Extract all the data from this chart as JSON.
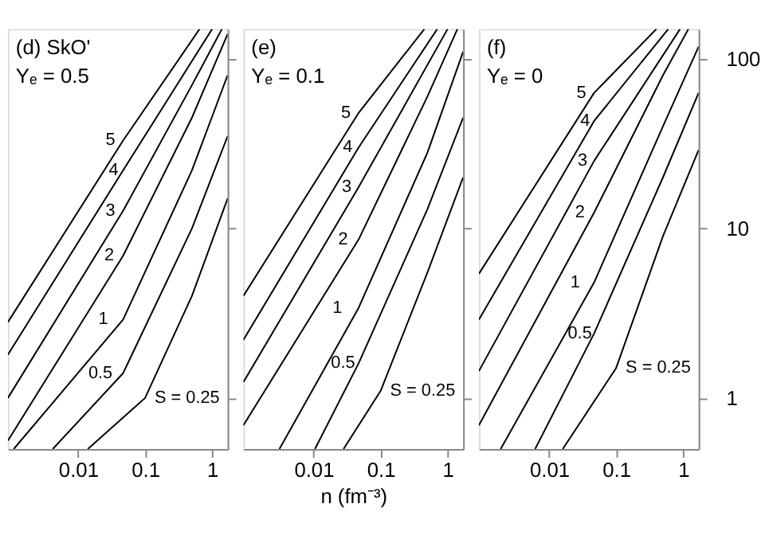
{
  "chart_data": [
    {
      "type": "line",
      "annotations": [
        "(d)  SkO'",
        "Yₑ = 0.5"
      ],
      "log": "xy",
      "grid": false,
      "legend": false,
      "tick_labels": "x",
      "xlim": [
        0.0009,
        1.7
      ],
      "ylim": [
        0.5,
        150
      ],
      "xticks": [
        0.01,
        0.1,
        1
      ],
      "yticks": [
        1,
        10,
        100
      ],
      "series": [
        {
          "name": "5",
          "color": "#000000",
          "x": [
            0.0009,
            0.047,
            0.65
          ],
          "values": [
            2.8,
            33,
            150
          ]
        },
        {
          "name": "4",
          "color": "#000000",
          "x": [
            0.0009,
            0.047,
            1.0
          ],
          "values": [
            1.8,
            22,
            150
          ]
        },
        {
          "name": "3",
          "color": "#000000",
          "x": [
            0.0009,
            0.047,
            0.5,
            1.4
          ],
          "values": [
            1.0,
            12.7,
            70,
            150
          ]
        },
        {
          "name": "2",
          "color": "#000000",
          "x": [
            0.0009,
            0.047,
            0.5,
            1.7
          ],
          "values": [
            0.56,
            6.9,
            45,
            140
          ]
        },
        {
          "name": "1",
          "color": "#000000",
          "x": [
            0.0011,
            0.047,
            0.5,
            1.7
          ],
          "values": [
            0.5,
            2.9,
            22,
            80
          ]
        },
        {
          "name": "0.5",
          "color": "#000000",
          "x": [
            0.0042,
            0.047,
            0.5,
            1.7
          ],
          "values": [
            0.5,
            1.4,
            10,
            35
          ]
        },
        {
          "name": "S = 0.25",
          "color": "#000000",
          "x": [
            0.014,
            0.1,
            0.5,
            1.7
          ],
          "values": [
            0.5,
            1.0,
            4,
            15
          ]
        }
      ]
    },
    {
      "type": "line",
      "annotations": [
        "(e)",
        "Yₑ = 0.1"
      ],
      "xlabel": "n (fm⁻³)",
      "log": "xy",
      "grid": false,
      "legend": false,
      "tick_labels": "x",
      "xlim": [
        0.0009,
        1.7
      ],
      "ylim": [
        0.5,
        150
      ],
      "xticks": [
        0.01,
        0.1,
        1
      ],
      "yticks": [
        1,
        10,
        100
      ],
      "series": [
        {
          "name": "5",
          "color": "#000000",
          "x": [
            0.0009,
            0.047,
            0.45
          ],
          "values": [
            4.0,
            48,
            150
          ]
        },
        {
          "name": "4",
          "color": "#000000",
          "x": [
            0.0009,
            0.047,
            0.7
          ],
          "values": [
            2.2,
            30,
            150
          ]
        },
        {
          "name": "3",
          "color": "#000000",
          "x": [
            0.0009,
            0.047,
            1.0
          ],
          "values": [
            1.24,
            17.5,
            150
          ]
        },
        {
          "name": "2",
          "color": "#000000",
          "x": [
            0.0009,
            0.047,
            0.5,
            1.4
          ],
          "values": [
            0.69,
            8.6,
            60,
            150
          ]
        },
        {
          "name": "1",
          "color": "#000000",
          "x": [
            0.0031,
            0.047,
            0.5,
            1.7
          ],
          "values": [
            0.5,
            3.4,
            28,
            110
          ]
        },
        {
          "name": "0.5",
          "color": "#000000",
          "x": [
            0.0105,
            0.047,
            0.5,
            1.7
          ],
          "values": [
            0.5,
            1.6,
            13,
            45
          ]
        },
        {
          "name": "S = 0.25",
          "color": "#000000",
          "x": [
            0.028,
            0.1,
            0.5,
            1.7
          ],
          "values": [
            0.5,
            1.1,
            5.5,
            20
          ]
        }
      ]
    },
    {
      "type": "line",
      "annotations": [
        "(f)",
        "Yₑ = 0"
      ],
      "log": "xy",
      "grid": false,
      "legend": false,
      "xlim": [
        0.0009,
        1.7
      ],
      "ylim": [
        0.5,
        150
      ],
      "xticks": [
        0.01,
        0.1,
        1
      ],
      "yticks": [
        1,
        10,
        100
      ],
      "series": [
        {
          "name": "5",
          "color": "#000000",
          "x": [
            0.0009,
            0.047,
            0.4
          ],
          "values": [
            5.4,
            63,
            150
          ]
        },
        {
          "name": "4",
          "color": "#000000",
          "x": [
            0.0009,
            0.047,
            0.6
          ],
          "values": [
            2.9,
            43,
            150
          ]
        },
        {
          "name": "3",
          "color": "#000000",
          "x": [
            0.0009,
            0.047,
            0.9
          ],
          "values": [
            1.44,
            25,
            150
          ]
        },
        {
          "name": "2",
          "color": "#000000",
          "x": [
            0.0009,
            0.047,
            0.5,
            1.2
          ],
          "values": [
            0.69,
            12.4,
            80,
            150
          ]
        },
        {
          "name": "1",
          "color": "#000000",
          "x": [
            0.0019,
            0.047,
            0.5,
            1.7
          ],
          "values": [
            0.5,
            4.8,
            40,
            118
          ]
        },
        {
          "name": "0.5",
          "color": "#000000",
          "x": [
            0.0062,
            0.047,
            0.5,
            1.7
          ],
          "values": [
            0.5,
            2.4,
            20,
            63
          ]
        },
        {
          "name": "S = 0.25",
          "color": "#000000",
          "x": [
            0.016,
            0.1,
            0.5,
            1.7
          ],
          "values": [
            0.5,
            1.5,
            9,
            29
          ]
        }
      ]
    }
  ]
}
